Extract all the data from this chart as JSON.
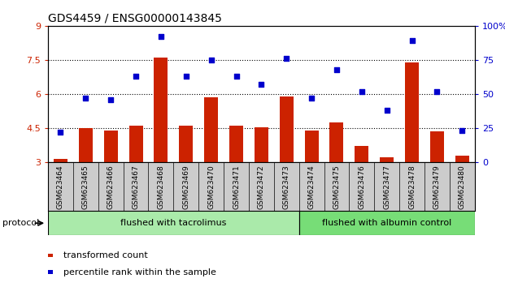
{
  "title": "GDS4459 / ENSG00000143845",
  "samples": [
    "GSM623464",
    "GSM623465",
    "GSM623466",
    "GSM623467",
    "GSM623468",
    "GSM623469",
    "GSM623470",
    "GSM623471",
    "GSM623472",
    "GSM623473",
    "GSM623474",
    "GSM623475",
    "GSM623476",
    "GSM623477",
    "GSM623478",
    "GSM623479",
    "GSM623480"
  ],
  "bar_values": [
    3.15,
    4.5,
    4.4,
    4.6,
    7.6,
    4.6,
    5.85,
    4.6,
    4.55,
    5.9,
    4.4,
    4.75,
    3.7,
    3.2,
    7.4,
    4.35,
    3.3
  ],
  "scatter_percentile": [
    22,
    47,
    46,
    63,
    92,
    63,
    75,
    63,
    57,
    76,
    47,
    68,
    52,
    38,
    89,
    52,
    23
  ],
  "bar_color": "#cc2200",
  "scatter_color": "#0000cc",
  "ylim_left": [
    3,
    9
  ],
  "ylim_right": [
    0,
    100
  ],
  "yticks_left": [
    3,
    4.5,
    6,
    7.5,
    9
  ],
  "yticks_right": [
    0,
    25,
    50,
    75,
    100
  ],
  "ytick_labels_right": [
    "0",
    "25",
    "50",
    "75",
    "100%"
  ],
  "hlines": [
    4.5,
    6.0,
    7.5
  ],
  "group1_count": 10,
  "group1_label": "flushed with tacrolimus",
  "group2_label": "flushed with albumin control",
  "protocol_label": "protocol",
  "legend_bar_label": "transformed count",
  "legend_scatter_label": "percentile rank within the sample",
  "title_fontsize": 10,
  "group_bg1": "#aaeaaa",
  "group_bg2": "#77dd77",
  "sample_label_bg": "#cccccc"
}
